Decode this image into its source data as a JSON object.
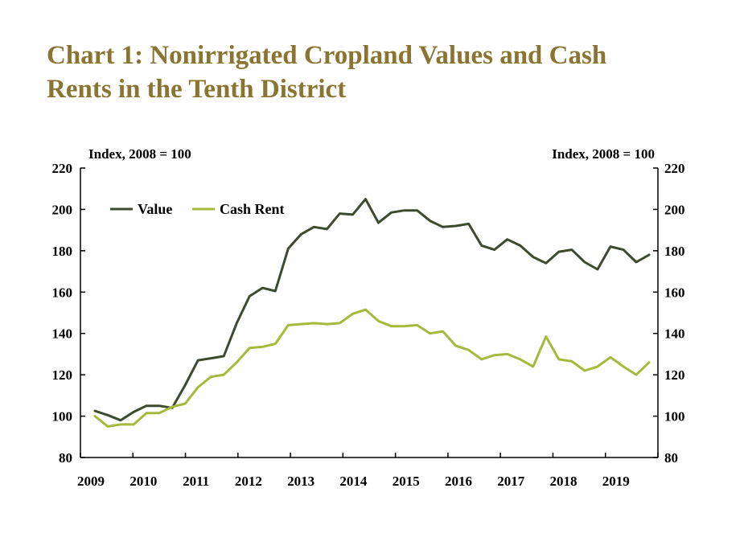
{
  "title": {
    "line1": "Chart 1: Nonirrigated Cropland Values and Cash",
    "line2": "Rents in the Tenth District"
  },
  "colors": {
    "title": "#8a7431",
    "value": "#3d4a2e",
    "cash_rent": "#a7b93c"
  },
  "chart_data": {
    "type": "line",
    "title": "Chart 1: Nonirrigated Cropland Values and Cash Rents in the Tenth District",
    "ylabel_left": "Index, 2008 = 100",
    "ylabel_right": "Index, 2008 = 100",
    "ylim": [
      80,
      220
    ],
    "yticks": [
      "80",
      "100",
      "120",
      "140",
      "160",
      "180",
      "200",
      "220"
    ],
    "xticks": [
      "2009",
      "2010",
      "2011",
      "2012",
      "2013",
      "2014",
      "2015",
      "2016",
      "2017",
      "2018",
      "2019"
    ],
    "x_note": "quarterly observations, 2009 Q1 through 2019 Q4",
    "grid": false,
    "legend": "top-left",
    "series": [
      {
        "name": "Value",
        "color": "#3d4a2e",
        "values": [
          102.5,
          100.5,
          98,
          102,
          105,
          105,
          104,
          115,
          127,
          128,
          129,
          145,
          158,
          162,
          160.5,
          181,
          188,
          191.5,
          190.5,
          198,
          197.5,
          205,
          193.5,
          198.5,
          199.5,
          199.5,
          194.5,
          191.5,
          192,
          193,
          182.5,
          180.5,
          185.5,
          182.5,
          177,
          174,
          179.5,
          180.5,
          174.5,
          171,
          182,
          180.5,
          174.5,
          178
        ]
      },
      {
        "name": "Cash Rent",
        "color": "#a7b93c",
        "values": [
          100,
          95,
          96,
          96,
          101.5,
          101.5,
          104.5,
          106,
          114,
          119,
          120,
          126,
          133,
          133.5,
          135,
          144,
          144.5,
          145,
          144.5,
          145,
          149.5,
          151.5,
          146,
          143.5,
          143.5,
          144,
          140,
          141,
          134,
          132,
          127.5,
          129.5,
          130,
          127.5,
          124,
          138.5,
          127.5,
          126.5,
          122,
          124,
          128.5,
          124,
          120,
          126
        ]
      }
    ]
  }
}
